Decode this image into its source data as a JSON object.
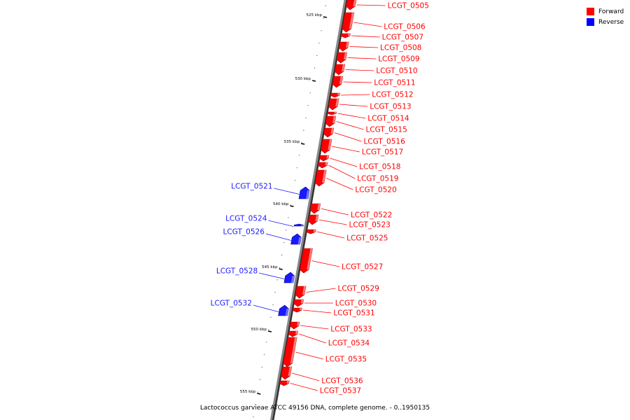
{
  "legend": {
    "forward_label": "Forward",
    "reverse_label": "Reverse",
    "forward_color": "#ff0000",
    "reverse_color": "#0000ff"
  },
  "caption": "Lactococcus garvieae ATCC 49156 DNA, complete genome. - 0..1950135",
  "colors": {
    "forward": "#ff0000",
    "forward_light": "#ff9a9a",
    "forward_dark": "#a00000",
    "reverse": "#1a1aff",
    "reverse_light": "#8a8aff",
    "reverse_dark": "#00008f",
    "backbone": "#888888",
    "backbone_edge": "#333333"
  },
  "scale_ticks": [
    "525 kbp",
    "530 kbp",
    "535 kbp",
    "540 kbp",
    "545 kbp",
    "550 kbp",
    "555 kbp"
  ],
  "genes": [
    {
      "label": "LCGT_0505",
      "strand": "forward"
    },
    {
      "label": "LCGT_0506",
      "strand": "forward"
    },
    {
      "label": "LCGT_0507",
      "strand": "forward"
    },
    {
      "label": "LCGT_0508",
      "strand": "forward"
    },
    {
      "label": "LCGT_0509",
      "strand": "forward"
    },
    {
      "label": "LCGT_0510",
      "strand": "forward"
    },
    {
      "label": "LCGT_0511",
      "strand": "forward"
    },
    {
      "label": "LCGT_0512",
      "strand": "forward"
    },
    {
      "label": "LCGT_0513",
      "strand": "forward"
    },
    {
      "label": "LCGT_0514",
      "strand": "forward"
    },
    {
      "label": "LCGT_0515",
      "strand": "forward"
    },
    {
      "label": "LCGT_0516",
      "strand": "forward"
    },
    {
      "label": "LCGT_0517",
      "strand": "forward"
    },
    {
      "label": "LCGT_0518",
      "strand": "forward"
    },
    {
      "label": "LCGT_0519",
      "strand": "forward"
    },
    {
      "label": "LCGT_0520",
      "strand": "forward"
    },
    {
      "label": "LCGT_0521",
      "strand": "reverse"
    },
    {
      "label": "LCGT_0522",
      "strand": "forward"
    },
    {
      "label": "LCGT_0523",
      "strand": "forward"
    },
    {
      "label": "LCGT_0524",
      "strand": "reverse"
    },
    {
      "label": "LCGT_0525",
      "strand": "forward"
    },
    {
      "label": "LCGT_0526",
      "strand": "reverse"
    },
    {
      "label": "LCGT_0527",
      "strand": "forward"
    },
    {
      "label": "LCGT_0528",
      "strand": "reverse"
    },
    {
      "label": "LCGT_0529",
      "strand": "forward"
    },
    {
      "label": "LCGT_0530",
      "strand": "forward"
    },
    {
      "label": "LCGT_0531",
      "strand": "forward"
    },
    {
      "label": "LCGT_0532",
      "strand": "reverse"
    },
    {
      "label": "LCGT_0533",
      "strand": "forward"
    },
    {
      "label": "LCGT_0534",
      "strand": "forward"
    },
    {
      "label": "LCGT_0535",
      "strand": "forward"
    },
    {
      "label": "LCGT_0536",
      "strand": "forward"
    },
    {
      "label": "LCGT_0537",
      "strand": "forward"
    }
  ]
}
